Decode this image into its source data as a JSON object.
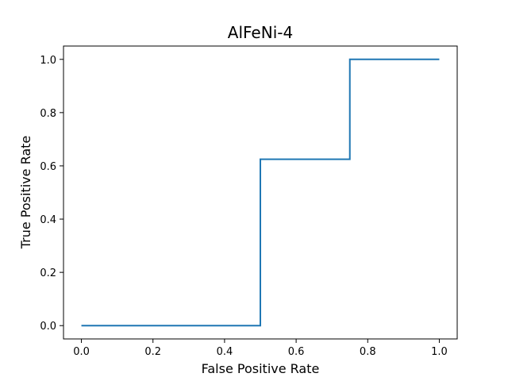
{
  "chart_data": {
    "type": "line",
    "title": "AlFeNi-4",
    "xlabel": "False Positive Rate",
    "ylabel": "True Positive Rate",
    "xlim": [
      -0.05,
      1.05
    ],
    "ylim": [
      -0.05,
      1.05
    ],
    "xticks": [
      0.0,
      0.2,
      0.4,
      0.6,
      0.8,
      1.0
    ],
    "yticks": [
      0.0,
      0.2,
      0.4,
      0.6,
      0.8,
      1.0
    ],
    "xtick_labels": [
      "0.0",
      "0.2",
      "0.4",
      "0.6",
      "0.8",
      "1.0"
    ],
    "ytick_labels": [
      "0.0",
      "0.2",
      "0.4",
      "0.6",
      "0.8",
      "1.0"
    ],
    "grid": false,
    "series": [
      {
        "color": "#1f77b4",
        "x": [
          0.0,
          0.5,
          0.5,
          0.75,
          0.75,
          1.0
        ],
        "y": [
          0.0,
          0.0,
          0.625,
          0.625,
          1.0,
          1.0
        ]
      }
    ]
  }
}
